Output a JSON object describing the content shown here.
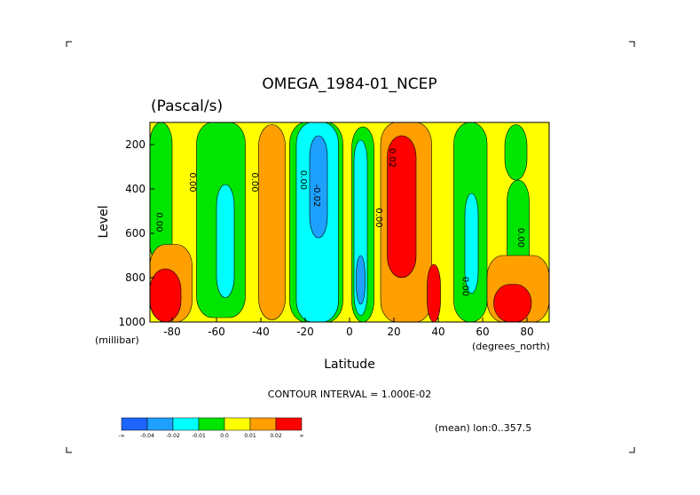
{
  "chart_data": {
    "type": "heatmap",
    "title": "OMEGA_1984-01_NCEP",
    "subtitle": "(Pascal/s)",
    "xlabel": "Latitude",
    "ylabel": "Level",
    "x_units": "(degrees_north)",
    "y_units": "(millibar)",
    "xlim": [
      -90,
      90
    ],
    "ylim": [
      1000,
      100
    ],
    "x_ticks": [
      "-80",
      "-60",
      "-40",
      "-20",
      "0",
      "20",
      "40",
      "60",
      "80"
    ],
    "y_ticks": [
      "200",
      "400",
      "600",
      "800",
      "1000"
    ],
    "contour_interval_text": "CONTOUR INTERVAL = 1.000E-02",
    "footer_text": "(mean) lon:0..357.5",
    "colorbar": {
      "colors": [
        "#1e64ff",
        "#1ea0ff",
        "#00ffff",
        "#00e600",
        "#ffff00",
        "#ffa000",
        "#ff0000"
      ],
      "labels": [
        "-∞",
        "-0.04",
        "-0.02",
        "-0.01",
        "0.0",
        "0.01",
        "0.02",
        "∞"
      ]
    },
    "contour_labels": [
      {
        "text": "0.00",
        "lat": -87,
        "lev": 550
      },
      {
        "text": "0.00",
        "lat": -72,
        "lev": 370
      },
      {
        "text": "0.00",
        "lat": -44,
        "lev": 370
      },
      {
        "text": "0.00",
        "lat": -22,
        "lev": 360
      },
      {
        "text": "-0.02",
        "lat": -16,
        "lev": 430
      },
      {
        "text": "0.00",
        "lat": 12,
        "lev": 530
      },
      {
        "text": "0.02",
        "lat": 18,
        "lev": 260
      },
      {
        "text": "0.00",
        "lat": 51,
        "lev": 840
      },
      {
        "text": "0.00",
        "lat": 76,
        "lev": 620
      }
    ],
    "regions": [
      {
        "fill": "#ffff00",
        "comment": "background",
        "lat": [
          -90,
          90
        ],
        "lev": [
          100,
          1000
        ]
      },
      {
        "fill": "#00e600",
        "lat": [
          -90,
          -80
        ],
        "lev": [
          100,
          740
        ]
      },
      {
        "fill": "#00e600",
        "lat": [
          -69,
          -47
        ],
        "lev": [
          100,
          980
        ]
      },
      {
        "fill": "#00e600",
        "lat": [
          -27,
          -3
        ],
        "lev": [
          100,
          1000
        ]
      },
      {
        "fill": "#00e600",
        "lat": [
          1,
          11
        ],
        "lev": [
          120,
          1000
        ]
      },
      {
        "fill": "#00e600",
        "lat": [
          47,
          62
        ],
        "lev": [
          100,
          1000
        ]
      },
      {
        "fill": "#00e600",
        "lat": [
          70,
          80
        ],
        "lev": [
          110,
          360
        ]
      },
      {
        "fill": "#00e600",
        "lat": [
          71,
          81
        ],
        "lev": [
          360,
          820
        ]
      },
      {
        "fill": "#00ffff",
        "lat": [
          -60,
          -52
        ],
        "lev": [
          380,
          890
        ]
      },
      {
        "fill": "#00ffff",
        "lat": [
          -24,
          -5
        ],
        "lev": [
          100,
          1000
        ]
      },
      {
        "fill": "#00ffff",
        "lat": [
          2,
          8
        ],
        "lev": [
          180,
          970
        ]
      },
      {
        "fill": "#00ffff",
        "lat": [
          52,
          58
        ],
        "lev": [
          420,
          870
        ]
      },
      {
        "fill": "#1ea0ff",
        "lat": [
          -18,
          -10
        ],
        "lev": [
          160,
          620
        ]
      },
      {
        "fill": "#1ea0ff",
        "lat": [
          3,
          7
        ],
        "lev": [
          700,
          920
        ]
      },
      {
        "fill": "#ffa000",
        "lat": [
          -41,
          -29
        ],
        "lev": [
          110,
          990
        ]
      },
      {
        "fill": "#ffa000",
        "lat": [
          14,
          37
        ],
        "lev": [
          100,
          1000
        ]
      },
      {
        "fill": "#ffa000",
        "lat": [
          62,
          90
        ],
        "lev": [
          700,
          1000
        ]
      },
      {
        "fill": "#ffa000",
        "lat": [
          -90,
          -71
        ],
        "lev": [
          650,
          1000
        ]
      },
      {
        "fill": "#ff0000",
        "lat": [
          17,
          30
        ],
        "lev": [
          160,
          800
        ]
      },
      {
        "fill": "#ff0000",
        "lat": [
          35,
          41
        ],
        "lev": [
          740,
          1000
        ]
      },
      {
        "fill": "#ff0000",
        "lat": [
          -90,
          -76
        ],
        "lev": [
          760,
          1000
        ]
      },
      {
        "fill": "#ff0000",
        "lat": [
          65,
          82
        ],
        "lev": [
          830,
          1000
        ]
      }
    ]
  }
}
